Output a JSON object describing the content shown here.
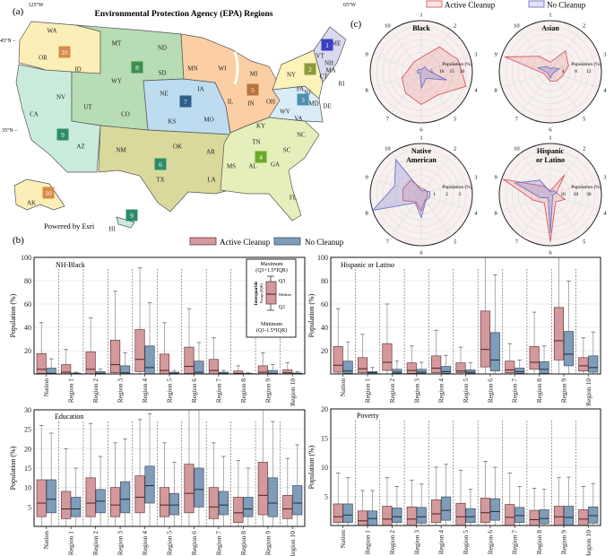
{
  "figure": {
    "panel_a": "(a)",
    "panel_b": "(b)",
    "panel_c": "(c)"
  },
  "legend": {
    "active": "Active Cleanup",
    "no": "No Cleanup",
    "active_color": "#d4999c",
    "no_color": "#7f9cb9",
    "radar_active_color": "#d9585f",
    "radar_no_color": "#6f74c8"
  },
  "map": {
    "title": "Environmental Protection Agency (EPA) Regions",
    "lon_labels": [
      "125°W",
      "65°W"
    ],
    "lat_labels": [
      "45°N –",
      "35°N –"
    ],
    "credit": "Powered by Esri",
    "region_colors": {
      "r1": "#d9d9ef",
      "r2": "#fbf3b8",
      "r3": "#d9ecf8",
      "r4": "#e4efbb",
      "r5": "#fbcfa3",
      "r6": "#d9d99c",
      "r7": "#bddcf0",
      "r8": "#b8dcb3",
      "r9": "#c9ebdc",
      "r10": "#fbefb7"
    },
    "badges": [
      {
        "label": "10",
        "color": "#d98a4a"
      },
      {
        "label": "8",
        "color": "#3d8f4e"
      },
      {
        "label": "7",
        "color": "#2f5f8a"
      },
      {
        "label": "6",
        "color": "#2e8b6a"
      },
      {
        "label": "9",
        "color": "#2e8b6a"
      },
      {
        "label": "5",
        "color": "#b8733a"
      },
      {
        "label": "4",
        "color": "#6aaa2a"
      },
      {
        "label": "3",
        "color": "#4a8fb0"
      },
      {
        "label": "2",
        "color": "#8f9a3a"
      },
      {
        "label": "1",
        "color": "#3b3fc0"
      },
      {
        "label": "10",
        "color": "#d98a4a"
      },
      {
        "label": "9",
        "color": "#2e8b6a"
      }
    ],
    "states": [
      "WA",
      "OR",
      "ID",
      "MT",
      "ND",
      "SD",
      "WY",
      "NV",
      "UT",
      "CO",
      "CA",
      "AZ",
      "NE",
      "IA",
      "KS",
      "MO",
      "MN",
      "WI",
      "MI",
      "IL",
      "IN",
      "OH",
      "PA",
      "WV",
      "VA",
      "NY",
      "NJ",
      "NH",
      "MA",
      "CT",
      "VT",
      "ME",
      "RI",
      "DE",
      "MD",
      "KY",
      "TN",
      "NC",
      "SC",
      "GA",
      "AL",
      "MS",
      "FL",
      "AR",
      "LA",
      "OK",
      "TX",
      "NM",
      "AK",
      "HI"
    ]
  },
  "box_key": {
    "max": "Maximum",
    "max_formula": "(Q3+1.5*IQR)",
    "q3": "Q3",
    "median": "Median",
    "q1": "Q1",
    "iqr1": "Interquartile",
    "iqr2": "Range (IQR)",
    "min": "Minimum",
    "min_formula": "(Q1-1.5*IQR)"
  },
  "chart_data": [
    {
      "type": "box",
      "title": "NH-Black",
      "ylabel": "Population (%)",
      "ylim": [
        0,
        100
      ],
      "yticks": [
        20,
        40,
        60,
        80,
        100
      ],
      "categories": [
        "Nation",
        "Region 1",
        "Region 2",
        "Region 3",
        "Region 4",
        "Region 5",
        "Region 6",
        "Region 7",
        "Region 8",
        "Region 9",
        "Region 10"
      ],
      "series": [
        {
          "name": "Active Cleanup",
          "stats": [
            [
              0,
              0.5,
              4,
              17.5,
              44
            ],
            [
              0,
              0,
              1.5,
              8,
              21
            ],
            [
              0,
              0,
              4,
              19,
              48
            ],
            [
              0,
              1,
              8,
              29,
              71
            ],
            [
              0,
              2,
              12.5,
              38,
              91
            ],
            [
              0,
              0,
              3,
              17,
              44
            ],
            [
              0,
              0.5,
              6.5,
              23,
              56
            ],
            [
              0,
              0,
              3,
              12.5,
              31
            ],
            [
              0,
              0,
              0.5,
              2.5,
              7
            ],
            [
              0,
              0,
              1.5,
              7,
              18
            ],
            [
              0,
              0,
              1,
              3.5,
              9.5
            ]
          ]
        },
        {
          "name": "No Cleanup",
          "stats": [
            [
              0,
              0,
              0.5,
              5,
              13
            ],
            [
              0,
              0,
              0.2,
              0.8,
              1.5
            ],
            [
              0,
              0,
              0.5,
              2,
              4
            ],
            [
              0,
              0,
              1,
              7,
              18
            ],
            [
              0,
              0,
              5.5,
              24,
              61
            ],
            [
              0,
              0,
              0.5,
              1.5,
              3
            ],
            [
              0,
              0,
              1.5,
              11,
              27
            ],
            [
              0,
              0,
              0.5,
              1.5,
              3
            ],
            [
              0,
              0,
              0,
              0.5,
              1
            ],
            [
              0,
              0,
              0.5,
              3,
              8
            ],
            [
              0,
              0,
              0.3,
              0.8,
              2
            ]
          ]
        }
      ]
    },
    {
      "type": "box",
      "title": "Hispanic or Latino",
      "ylabel": "Population (%)",
      "ylim": [
        0,
        100
      ],
      "yticks": [
        20,
        40,
        60,
        80,
        100
      ],
      "categories": [
        "Nation",
        "Region 1",
        "Region 2",
        "Region 3",
        "Region 4",
        "Region 5",
        "Region 6",
        "Region 7",
        "Region 8",
        "Region 9",
        "Region 10"
      ],
      "series": [
        {
          "name": "Active Cleanup",
          "stats": [
            [
              0,
              1.5,
              7.5,
              23.5,
              56
            ],
            [
              0,
              1,
              4.5,
              14,
              34
            ],
            [
              0,
              3,
              10,
              26,
              60
            ],
            [
              0,
              0.5,
              3,
              9.5,
              24
            ],
            [
              0,
              1,
              5,
              15.5,
              37.5
            ],
            [
              0,
              1,
              2.5,
              9.5,
              23
            ],
            [
              0,
              6,
              21,
              54,
              100
            ],
            [
              0,
              1,
              3.5,
              11,
              26
            ],
            [
              0,
              4,
              10,
              23.5,
              53
            ],
            [
              0,
              12,
              28.5,
              57,
              100
            ],
            [
              0,
              2.5,
              7,
              14,
              31
            ]
          ]
        },
        {
          "name": "No Cleanup",
          "stats": [
            [
              0,
              0.5,
              2.5,
              11,
              27.5
            ],
            [
              0,
              0,
              1,
              2,
              5.5
            ],
            [
              0,
              0.5,
              1.5,
              4,
              11
            ],
            [
              0,
              0.5,
              1.5,
              4,
              10
            ],
            [
              0,
              0.5,
              2,
              6.5,
              16
            ],
            [
              0,
              0.5,
              1.5,
              3.5,
              9.5
            ],
            [
              0,
              2.5,
              12,
              35.5,
              85
            ],
            [
              0,
              0.5,
              2,
              5,
              12
            ],
            [
              0,
              0.5,
              4,
              10.5,
              24
            ],
            [
              0,
              7,
              17,
              36.5,
              79.5
            ],
            [
              0,
              1.5,
              5.5,
              15.5,
              36
            ]
          ]
        }
      ]
    },
    {
      "type": "box",
      "title": "Education",
      "ylabel": "Population (%)",
      "ylim": [
        0,
        30
      ],
      "yticks": [
        5,
        10,
        15,
        20,
        25,
        30
      ],
      "categories": [
        "Nation",
        "Region 1",
        "Region 2",
        "Region 3",
        "Region 4",
        "Region 5",
        "Region 6",
        "Region 7",
        "Region 8",
        "Region 9",
        "Region 10"
      ],
      "series": [
        {
          "name": "Active Cleanup",
          "stats": [
            [
              0,
              2.5,
              6,
              12,
              26
            ],
            [
              0,
              2,
              4.5,
              9,
              20
            ],
            [
              0,
              2.5,
              6,
              12.5,
              26.5
            ],
            [
              0,
              2.5,
              5.5,
              10,
              21.5
            ],
            [
              0,
              3.5,
              7.5,
              13,
              27.5
            ],
            [
              0,
              2.5,
              5.5,
              10,
              21.5
            ],
            [
              0,
              3.5,
              8.5,
              16,
              30
            ],
            [
              0,
              2,
              5,
              10,
              21.5
            ],
            [
              0,
              1,
              3.5,
              7.5,
              17
            ],
            [
              0,
              3,
              8,
              16.5,
              30
            ],
            [
              0,
              2,
              4.5,
              8,
              17.5
            ]
          ]
        },
        {
          "name": "No Cleanup",
          "stats": [
            [
              0,
              3.5,
              7,
              12,
              24
            ],
            [
              0,
              2.5,
              4.5,
              7.5,
              15
            ],
            [
              0,
              3.5,
              6.5,
              9.5,
              18
            ],
            [
              0,
              3.5,
              7,
              11.5,
              22.5
            ],
            [
              0,
              6,
              10.5,
              15.5,
              29
            ],
            [
              0,
              3,
              5.5,
              8.5,
              16.5
            ],
            [
              0,
              5,
              9.5,
              15,
              30
            ],
            [
              0,
              3,
              5.5,
              9,
              18
            ],
            [
              0,
              2.5,
              4.5,
              7.5,
              15
            ],
            [
              0,
              2.5,
              6,
              12.5,
              27
            ],
            [
              0,
              3,
              6,
              10.5,
              21
            ]
          ]
        }
      ]
    },
    {
      "type": "box",
      "title": "Poverty",
      "ylabel": "Population (%)",
      "ylim": [
        0,
        20
      ],
      "yticks": [
        5,
        10,
        15,
        20
      ],
      "categories": [
        "Nation",
        "Region 1",
        "Region 2",
        "Region 3",
        "Region 4",
        "Region 5",
        "Region 6",
        "Region 7",
        "Region 8",
        "Region 9",
        "Region 10"
      ],
      "series": [
        {
          "name": "Active Cleanup",
          "stats": [
            [
              0,
              0.5,
              1.5,
              3.7,
              9
            ],
            [
              0,
              0,
              0.8,
              2.5,
              6
            ],
            [
              0,
              0,
              1.1,
              3.3,
              8.2
            ],
            [
              0,
              0,
              1.1,
              3.2,
              7.8
            ],
            [
              0,
              0.5,
              2,
              4.4,
              10
            ],
            [
              0,
              0,
              1.5,
              3.8,
              9.5
            ],
            [
              0,
              0.5,
              2.2,
              4.7,
              11
            ],
            [
              0,
              0,
              1.4,
              3.6,
              9
            ],
            [
              0,
              0,
              1,
              2.6,
              6.4
            ],
            [
              0,
              0,
              1.5,
              3.3,
              8.2
            ],
            [
              0,
              0,
              1.1,
              2.7,
              6.7
            ]
          ]
        },
        {
          "name": "No Cleanup",
          "stats": [
            [
              0,
              0.5,
              1.8,
              3.7,
              8.2
            ],
            [
              0,
              0,
              1.2,
              2.5,
              6
            ],
            [
              0,
              0.5,
              1.5,
              3,
              6.7
            ],
            [
              0,
              0.4,
              1.5,
              3.1,
              7.1
            ],
            [
              0,
              0.9,
              2.6,
              4.9,
              10.5
            ],
            [
              0,
              0.5,
              1.5,
              2.9,
              6.2
            ],
            [
              0,
              0.9,
              2.4,
              4.6,
              10
            ],
            [
              0,
              0.5,
              1.7,
              3.1,
              6.7
            ],
            [
              0,
              0.3,
              1.2,
              2.7,
              6.2
            ],
            [
              0,
              0,
              1.4,
              3.3,
              8.3
            ],
            [
              0,
              0.4,
              1.7,
              3.2,
              7.2
            ]
          ]
        }
      ]
    },
    {
      "type": "radar",
      "title_lines": [
        "Black"
      ],
      "axis_label": "Population (%)",
      "rmax": 25,
      "rticks": [
        5,
        10,
        15,
        20
      ],
      "categories": [
        "1",
        "2",
        "3",
        "4",
        "5",
        "6",
        "7",
        "8",
        "9",
        "10"
      ],
      "series": [
        {
          "name": "Active Cleanup",
          "values": [
            7,
            15,
            19,
            23,
            14,
            16,
            13,
            10,
            6,
            6
          ]
        },
        {
          "name": "No Cleanup",
          "values": [
            1,
            3,
            3,
            13,
            4,
            8,
            1,
            2,
            2,
            1.5
          ]
        }
      ]
    },
    {
      "type": "radar",
      "title_lines": [
        "Asian"
      ],
      "axis_label": "Population (%)",
      "rmax": 16,
      "rticks": [
        4,
        8,
        12
      ],
      "categories": [
        "1",
        "2",
        "3",
        "4",
        "5",
        "6",
        "7",
        "8",
        "9",
        "10"
      ],
      "series": [
        {
          "name": "Active Cleanup",
          "values": [
            3,
            8,
            6,
            4,
            3.5,
            3,
            2,
            2,
            15,
            6
          ]
        },
        {
          "name": "No Cleanup",
          "values": [
            1,
            1.5,
            3,
            1,
            1,
            2,
            1,
            1,
            4,
            2
          ]
        }
      ]
    },
    {
      "type": "radar",
      "title_lines": [
        "Native",
        "American"
      ],
      "axis_label": "Population (%)",
      "rmax": 4,
      "rticks": [
        1,
        2,
        3
      ],
      "categories": [
        "1",
        "2",
        "3",
        "4",
        "5",
        "6",
        "7",
        "8",
        "9",
        "10"
      ],
      "series": [
        {
          "name": "Active Cleanup",
          "values": [
            0.5,
            0.5,
            0.5,
            0.5,
            0.5,
            1.3,
            0.7,
            1.5,
            1.5,
            1.4
          ]
        },
        {
          "name": "No Cleanup",
          "values": [
            0.3,
            0.4,
            0.7,
            0.7,
            0.6,
            1.8,
            0.8,
            4.0,
            2.2,
            3.4
          ]
        }
      ]
    },
    {
      "type": "radar",
      "title_lines": [
        "Hispanic",
        "or Latino"
      ],
      "axis_label": "Population (%)",
      "rmax": 40,
      "rticks": [
        10,
        20,
        30
      ],
      "categories": [
        "1",
        "2",
        "3",
        "4",
        "5",
        "6",
        "7",
        "8",
        "9",
        "10"
      ],
      "series": [
        {
          "name": "Active Cleanup",
          "values": [
            3,
            19,
            5,
            12,
            7,
            37,
            8,
            14,
            39,
            8
          ]
        },
        {
          "name": "No Cleanup",
          "values": [
            2,
            4,
            5,
            2,
            3,
            30,
            3,
            8,
            29,
            14
          ]
        }
      ]
    }
  ]
}
